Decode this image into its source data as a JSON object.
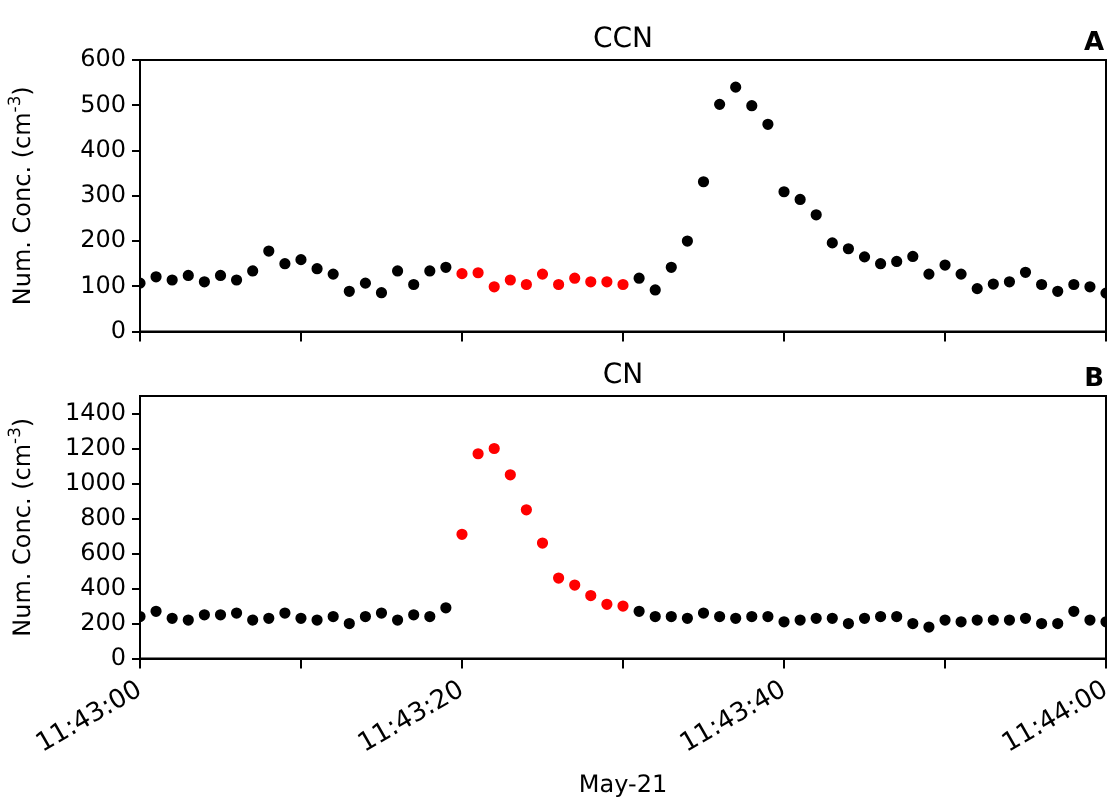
{
  "chart_data": [
    {
      "type": "scatter",
      "title": "CCN",
      "ylabel": "Num. Conc. (cm$^{-3}$)",
      "annotations": [
        "A"
      ],
      "marker": "circle",
      "tick_labels": "y",
      "x": [
        11.716667,
        11.716944,
        11.717222,
        11.7175,
        11.717778,
        11.718056,
        11.718333,
        11.718611,
        11.718889,
        11.719167,
        11.719444,
        11.719722,
        11.72,
        11.720278,
        11.720556,
        11.720833,
        11.721111,
        11.721389,
        11.721667,
        11.721944,
        11.722222,
        11.7225,
        11.722778,
        11.723056,
        11.723333,
        11.723611,
        11.723889,
        11.724167,
        11.724444,
        11.724722,
        11.725,
        11.725278,
        11.725556,
        11.725833,
        11.726111,
        11.726389,
        11.726667,
        11.726944,
        11.727222,
        11.7275,
        11.727778,
        11.728056,
        11.728333,
        11.728611,
        11.728889,
        11.729167,
        11.729444,
        11.729722,
        11.73,
        11.730278,
        11.730556,
        11.730833,
        11.731111,
        11.731389,
        11.731667,
        11.731944,
        11.732222,
        11.7325,
        11.732778,
        11.733056,
        11.733333
      ],
      "values": [
        107,
        121,
        114,
        124,
        110,
        124,
        114,
        134,
        178,
        150,
        159,
        139,
        127,
        89,
        107,
        86,
        134,
        104,
        134,
        142,
        128,
        130,
        99,
        114,
        104,
        127,
        104,
        118,
        110,
        110,
        104,
        118,
        92,
        142,
        200,
        331,
        502,
        540,
        499,
        458,
        309,
        292,
        258,
        196,
        183,
        165,
        150,
        155,
        166,
        127,
        147,
        127,
        95,
        105,
        110,
        131,
        104,
        89,
        104,
        99,
        85
      ],
      "colors": [
        "#000000",
        "#000000",
        "#000000",
        "#000000",
        "#000000",
        "#000000",
        "#000000",
        "#000000",
        "#000000",
        "#000000",
        "#000000",
        "#000000",
        "#000000",
        "#000000",
        "#000000",
        "#000000",
        "#000000",
        "#000000",
        "#000000",
        "#000000",
        "#ff0000",
        "#ff0000",
        "#ff0000",
        "#ff0000",
        "#ff0000",
        "#ff0000",
        "#ff0000",
        "#ff0000",
        "#ff0000",
        "#ff0000",
        "#ff0000",
        "#000000",
        "#000000",
        "#000000",
        "#000000",
        "#000000",
        "#000000",
        "#000000",
        "#000000",
        "#000000",
        "#000000",
        "#000000",
        "#000000",
        "#000000",
        "#000000",
        "#000000",
        "#000000",
        "#000000",
        "#000000",
        "#000000",
        "#000000",
        "#000000",
        "#000000",
        "#000000",
        "#000000",
        "#000000",
        "#000000",
        "#000000",
        "#000000",
        "#000000",
        "#000000"
      ],
      "xlim": [
        11.716667,
        11.733333
      ],
      "ylim": [
        0,
        600
      ],
      "xticks": [
        {
          "value": 11.716667,
          "label": null
        },
        {
          "value": 11.719444,
          "label": null
        },
        {
          "value": 11.722222,
          "label": null
        },
        {
          "value": 11.725,
          "label": null
        },
        {
          "value": 11.727778,
          "label": null
        },
        {
          "value": 11.730556,
          "label": null
        },
        {
          "value": 11.733333,
          "label": null
        }
      ],
      "yticks": [
        0,
        100,
        200,
        300,
        400,
        500,
        600
      ]
    },
    {
      "type": "scatter",
      "title": "CN",
      "ylabel": "Num. Conc. (cm$^{-3}$)",
      "xlabel": "May-21",
      "annotations": [
        "B"
      ],
      "marker": "circle",
      "x": [
        11.716667,
        11.716944,
        11.717222,
        11.7175,
        11.717778,
        11.718056,
        11.718333,
        11.718611,
        11.718889,
        11.719167,
        11.719444,
        11.719722,
        11.72,
        11.720278,
        11.720556,
        11.720833,
        11.721111,
        11.721389,
        11.721667,
        11.721944,
        11.722222,
        11.7225,
        11.722778,
        11.723056,
        11.723333,
        11.723611,
        11.723889,
        11.724167,
        11.724444,
        11.724722,
        11.725,
        11.725278,
        11.725556,
        11.725833,
        11.726111,
        11.726389,
        11.726667,
        11.726944,
        11.727222,
        11.7275,
        11.727778,
        11.728056,
        11.728333,
        11.728611,
        11.728889,
        11.729167,
        11.729444,
        11.729722,
        11.73,
        11.730278,
        11.730556,
        11.730833,
        11.731111,
        11.731389,
        11.731667,
        11.731944,
        11.732222,
        11.7325,
        11.732778,
        11.733056,
        11.733333
      ],
      "values": [
        240,
        270,
        230,
        220,
        250,
        250,
        260,
        220,
        230,
        260,
        230,
        220,
        240,
        200,
        240,
        260,
        220,
        250,
        240,
        290,
        710,
        1170,
        1200,
        1050,
        850,
        660,
        460,
        420,
        360,
        310,
        300,
        270,
        240,
        240,
        230,
        260,
        240,
        230,
        240,
        240,
        210,
        220,
        230,
        230,
        200,
        230,
        240,
        240,
        200,
        180,
        220,
        210,
        220,
        220,
        220,
        230,
        200,
        200,
        270,
        220,
        210
      ],
      "colors": [
        "#000000",
        "#000000",
        "#000000",
        "#000000",
        "#000000",
        "#000000",
        "#000000",
        "#000000",
        "#000000",
        "#000000",
        "#000000",
        "#000000",
        "#000000",
        "#000000",
        "#000000",
        "#000000",
        "#000000",
        "#000000",
        "#000000",
        "#000000",
        "#ff0000",
        "#ff0000",
        "#ff0000",
        "#ff0000",
        "#ff0000",
        "#ff0000",
        "#ff0000",
        "#ff0000",
        "#ff0000",
        "#ff0000",
        "#ff0000",
        "#000000",
        "#000000",
        "#000000",
        "#000000",
        "#000000",
        "#000000",
        "#000000",
        "#000000",
        "#000000",
        "#000000",
        "#000000",
        "#000000",
        "#000000",
        "#000000",
        "#000000",
        "#000000",
        "#000000",
        "#000000",
        "#000000",
        "#000000",
        "#000000",
        "#000000",
        "#000000",
        "#000000",
        "#000000",
        "#000000",
        "#000000",
        "#000000",
        "#000000",
        "#000000"
      ],
      "xlim": [
        11.716667,
        11.733333
      ],
      "ylim": [
        0,
        1500
      ],
      "xticks": [
        {
          "value": 11.716667,
          "label": "11:43:00"
        },
        {
          "value": 11.719444,
          "label": null
        },
        {
          "value": 11.722222,
          "label": "11:43:20"
        },
        {
          "value": 11.725,
          "label": null
        },
        {
          "value": 11.727778,
          "label": "11:43:40"
        },
        {
          "value": 11.730556,
          "label": null
        },
        {
          "value": 11.733333,
          "label": "11:44:00"
        }
      ],
      "yticks": [
        0,
        200,
        400,
        600,
        800,
        1000,
        1200,
        1400
      ]
    }
  ]
}
